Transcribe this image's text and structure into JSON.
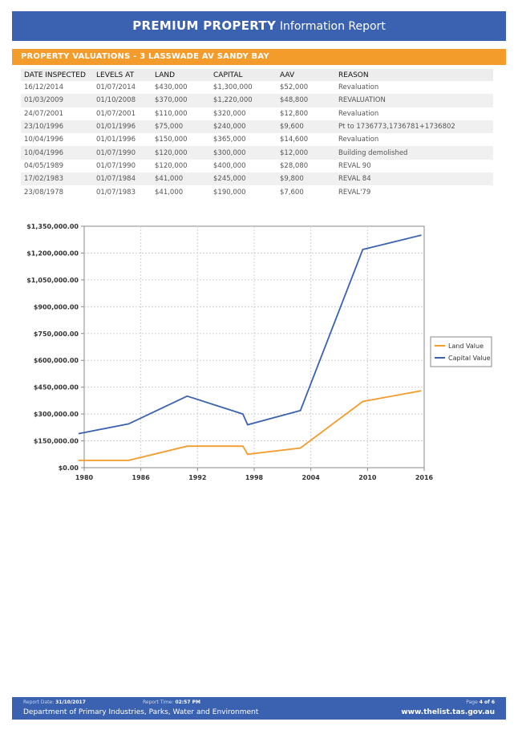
{
  "header": {
    "title_strong": "PREMIUM PROPERTY",
    "title_light": "Information Report",
    "background": "#3a62b0"
  },
  "section": {
    "title": "PROPERTY VALUATIONS - 3 LASSWADE AV SANDY BAY",
    "background": "#f39b2b"
  },
  "table": {
    "columns": [
      "DATE INSPECTED",
      "LEVELS AT",
      "LAND",
      "CAPITAL",
      "AAV",
      "REASON"
    ],
    "rows": [
      [
        "16/12/2014",
        "01/07/2014",
        "$430,000",
        "$1,300,000",
        "$52,000",
        "Revaluation"
      ],
      [
        "01/03/2009",
        "01/10/2008",
        "$370,000",
        "$1,220,000",
        "$48,800",
        "REVALUATION"
      ],
      [
        "24/07/2001",
        "01/07/2001",
        "$110,000",
        "$320,000",
        "$12,800",
        "Revaluation"
      ],
      [
        "23/10/1996",
        "01/01/1996",
        "$75,000",
        "$240,000",
        "$9,600",
        "Pt to 1736773,1736781+1736802"
      ],
      [
        "10/04/1996",
        "01/01/1996",
        "$150,000",
        "$365,000",
        "$14,600",
        "Revaluation"
      ],
      [
        "10/04/1996",
        "01/07/1990",
        "$120,000",
        "$300,000",
        "$12,000",
        "Building demolished"
      ],
      [
        "04/05/1989",
        "01/07/1990",
        "$120,000",
        "$400,000",
        "$28,080",
        "REVAL 90"
      ],
      [
        "17/02/1983",
        "01/07/1984",
        "$41,000",
        "$245,000",
        "$9,800",
        "REVAL 84"
      ],
      [
        "23/08/1978",
        "01/07/1983",
        "$41,000",
        "$190,000",
        "$7,600",
        "REVAL'79"
      ]
    ]
  },
  "chart_data": {
    "type": "line",
    "title": "",
    "xlabel": "",
    "ylabel": "",
    "xlim": [
      1980,
      2016
    ],
    "ylim": [
      0,
      1350000
    ],
    "xticks": [
      "1980",
      "1986",
      "1992",
      "1998",
      "2004",
      "2010",
      "2016"
    ],
    "yticks": [
      "$0.00",
      "$150,000.00",
      "$300,000.00",
      "$450,000.00",
      "$600,000.00",
      "$750,000.00",
      "$900,000.00",
      "$1,050,000.00",
      "$1,200,000.00",
      "$1,350,000.00"
    ],
    "grid": true,
    "legend_position": "right",
    "series": [
      {
        "name": "Land Value",
        "color": "#f39b2b",
        "points": [
          [
            1979.4,
            41000
          ],
          [
            1984.7,
            41000
          ],
          [
            1990.9,
            120000
          ],
          [
            1996.8,
            120000
          ],
          [
            1997.3,
            75000
          ],
          [
            2002.9,
            110000
          ],
          [
            2009.5,
            370000
          ],
          [
            2015.7,
            430000
          ]
        ]
      },
      {
        "name": "Capital Value",
        "color": "#3a62b0",
        "points": [
          [
            1979.4,
            190000
          ],
          [
            1984.7,
            245000
          ],
          [
            1990.9,
            400000
          ],
          [
            1996.8,
            300000
          ],
          [
            1997.3,
            240000
          ],
          [
            2002.9,
            320000
          ],
          [
            2009.5,
            1220000
          ],
          [
            2015.7,
            1300000
          ]
        ]
      }
    ]
  },
  "footer": {
    "report_date_label": "Report Date:",
    "report_date": "31/10/2017",
    "report_time_label": "Report Time:",
    "report_time": "02:57 PM",
    "page_label": "Page",
    "page": "4 of 6",
    "department": "Department of Primary Industries, Parks, Water and Environment",
    "url": "www.thelist.tas.gov.au"
  }
}
